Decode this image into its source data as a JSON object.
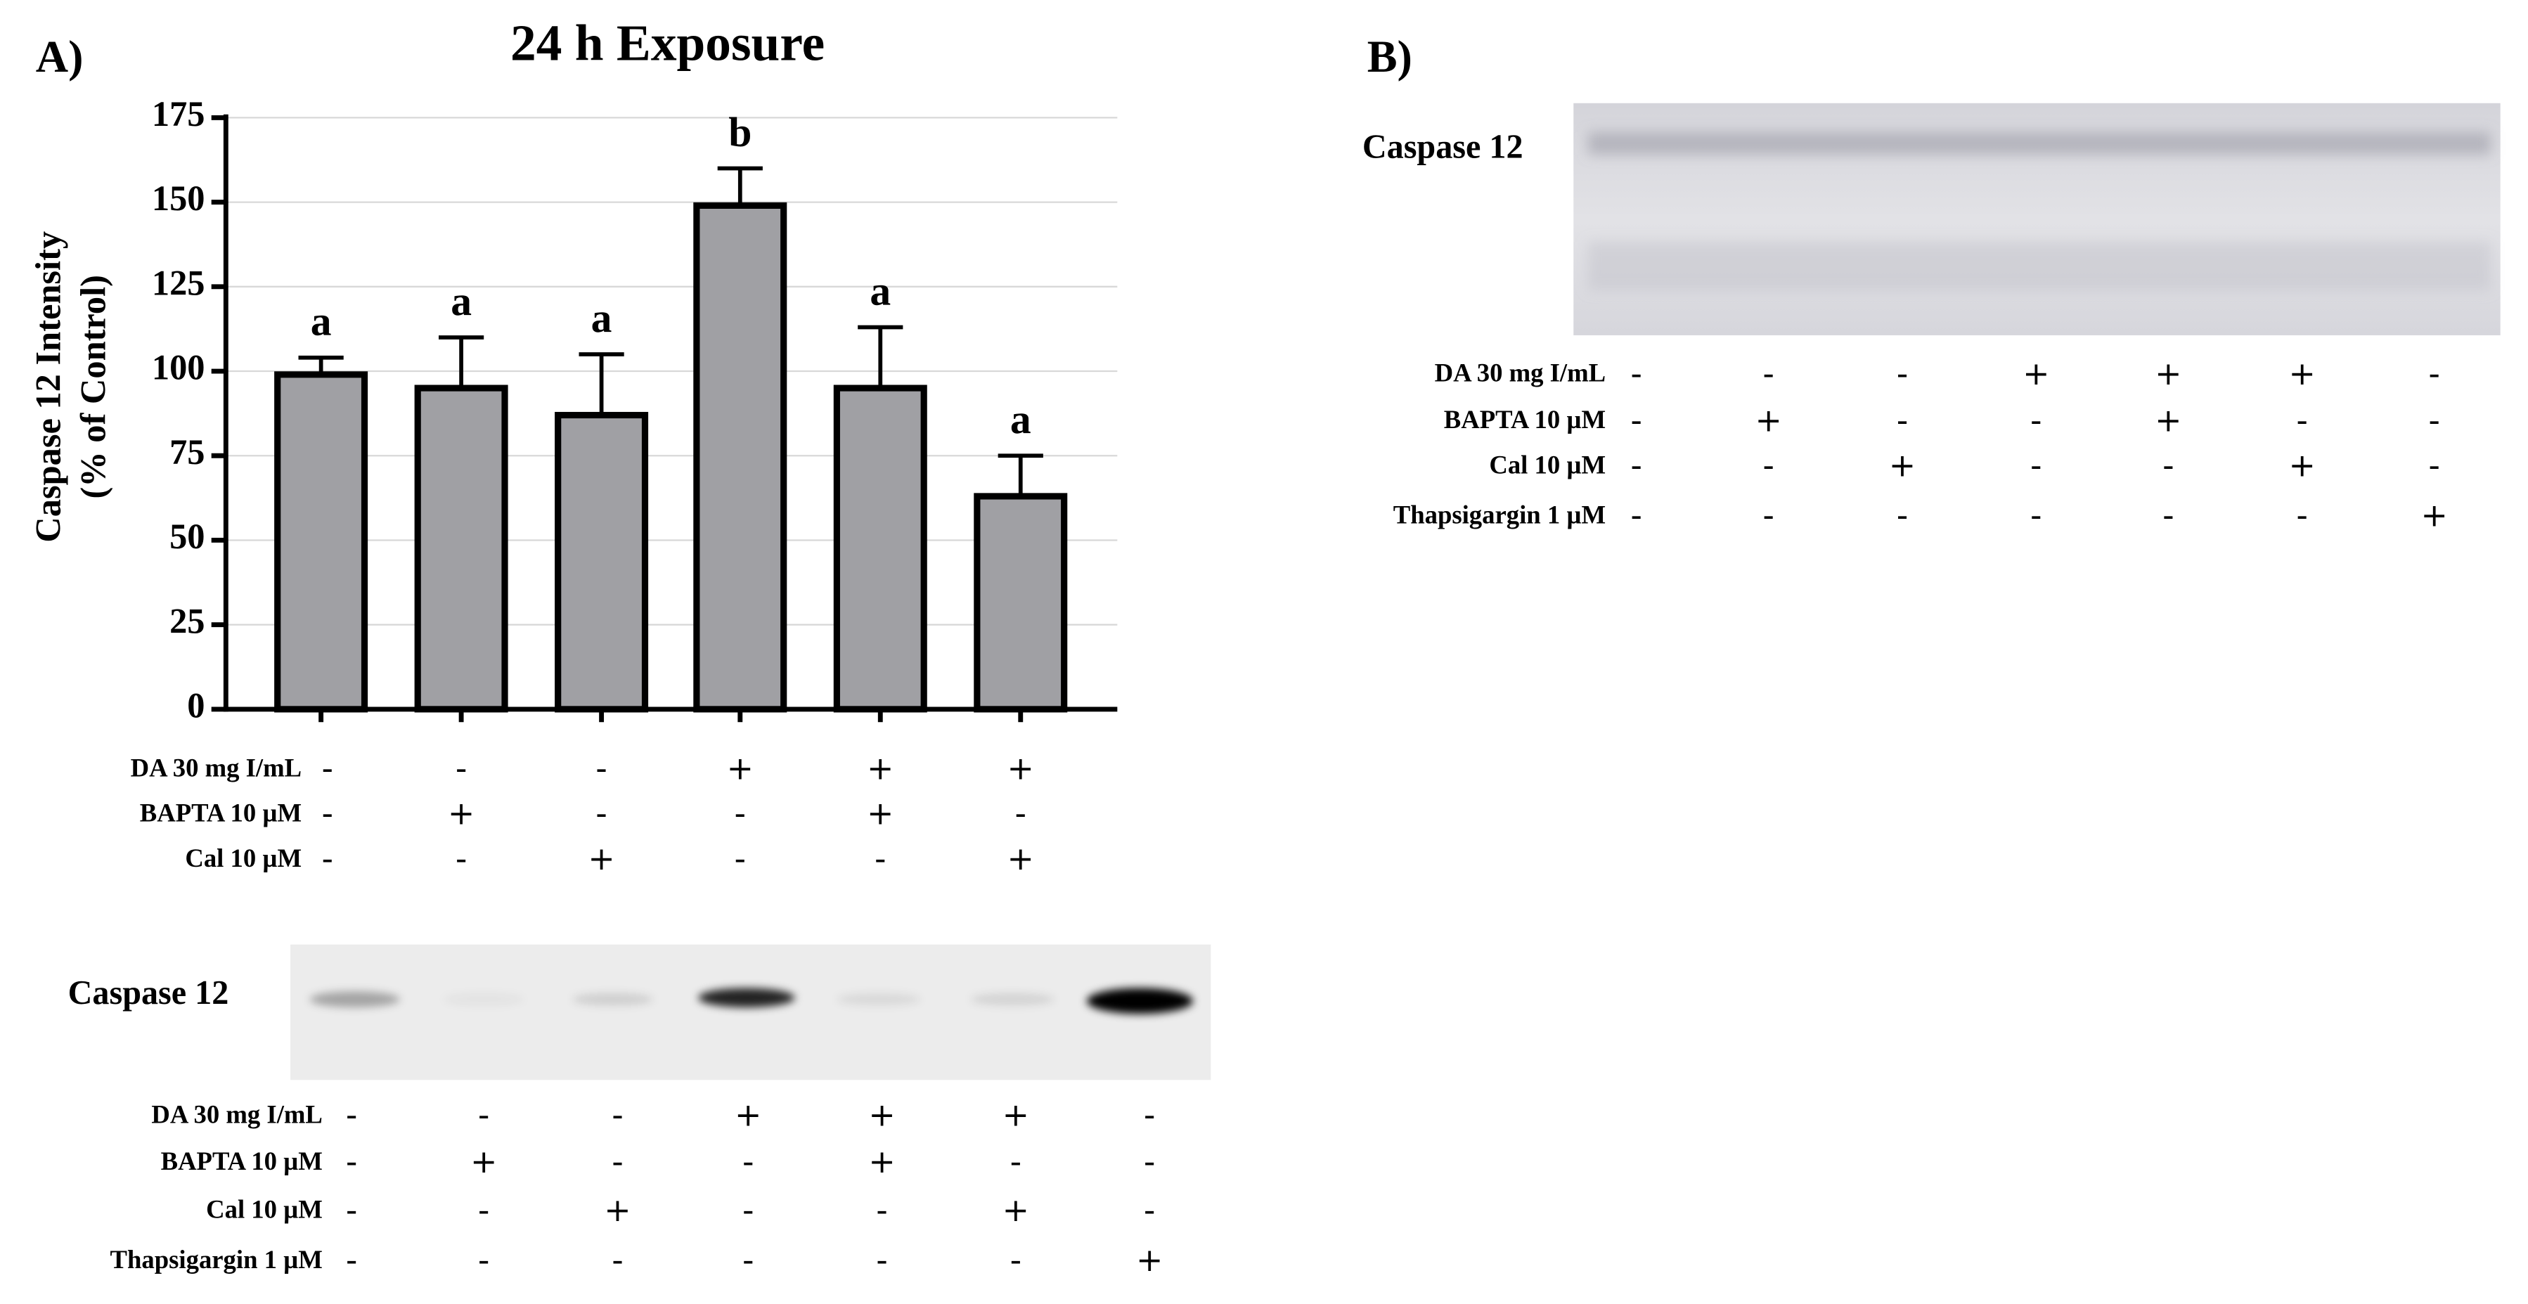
{
  "panel_a_label": "A)",
  "panel_b_label": "B)",
  "chart_data": {
    "type": "bar",
    "title": "24 h Exposure",
    "ylabel": [
      "Caspase 12 Intensity",
      "(% of Control)"
    ],
    "values": [
      99,
      95,
      87,
      149,
      95,
      63
    ],
    "errors": [
      5,
      15,
      18,
      11,
      18,
      12
    ],
    "annotations": [
      "a",
      "a",
      "a",
      "b",
      "a",
      "a"
    ],
    "color": "#a0a0a4",
    "ylim": [
      0,
      175
    ],
    "yticks": [
      0,
      25,
      50,
      75,
      100,
      125,
      150,
      175
    ],
    "grid": true
  },
  "table_a": {
    "rows": [
      {
        "label": "DA 30 mg I/mL",
        "signs": [
          "-",
          "-",
          "-",
          "+",
          "+",
          "+"
        ]
      },
      {
        "label": "BAPTA 10 µM",
        "signs": [
          "-",
          "+",
          "-",
          "-",
          "+",
          "-"
        ]
      },
      {
        "label": "Cal 10 µM",
        "signs": [
          "-",
          "-",
          "+",
          "-",
          "-",
          "+"
        ]
      }
    ]
  },
  "blot_a": {
    "label": "Caspase 12"
  },
  "table_blot_a": {
    "rows": [
      {
        "label": "DA 30 mg I/mL",
        "signs": [
          "-",
          "-",
          "-",
          "+",
          "+",
          "+",
          "-"
        ]
      },
      {
        "label": "BAPTA 10 µM",
        "signs": [
          "-",
          "+",
          "-",
          "-",
          "+",
          "-",
          "-"
        ]
      },
      {
        "label": "Cal 10 µM",
        "signs": [
          "-",
          "-",
          "+",
          "-",
          "-",
          "+",
          "-"
        ]
      },
      {
        "label": "Thapsigargin 1 µM",
        "signs": [
          "-",
          "-",
          "-",
          "-",
          "-",
          "-",
          "+"
        ]
      }
    ]
  },
  "blot_b": {
    "label": "Caspase 12"
  },
  "table_blot_b": {
    "rows": [
      {
        "label": "DA 30 mg I/mL",
        "signs": [
          "-",
          "-",
          "-",
          "+",
          "+",
          "+",
          "-"
        ]
      },
      {
        "label": "BAPTA 10 µM",
        "signs": [
          "-",
          "+",
          "-",
          "-",
          "+",
          "-",
          "-"
        ]
      },
      {
        "label": "Cal 10 µM",
        "signs": [
          "-",
          "-",
          "+",
          "-",
          "-",
          "+",
          "-"
        ]
      },
      {
        "label": "Thapsigargin 1 µM",
        "signs": [
          "-",
          "-",
          "-",
          "-",
          "-",
          "-",
          "+"
        ]
      }
    ]
  }
}
